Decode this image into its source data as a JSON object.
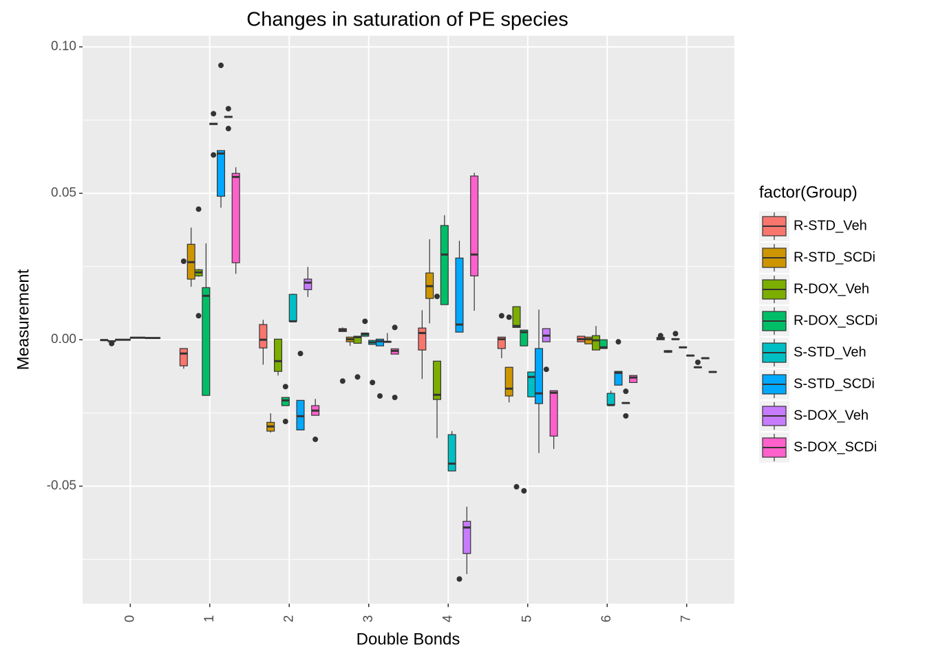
{
  "chart_data": {
    "type": "boxplot",
    "title": "Changes in saturation of PE species",
    "x_label": "Double Bonds",
    "y_label": "Measurement",
    "categories": [
      "0",
      "1",
      "2",
      "3",
      "4",
      "5",
      "6",
      "7"
    ],
    "ylim": [
      -0.0901,
      0.1038
    ],
    "yticks": [
      -0.05,
      {
        "value": 0,
        "label": "0.00"
      },
      0.05,
      {
        "value": 0.1,
        "label": "0.10"
      }
    ],
    "minor_yticks": [
      -0.075,
      -0.025,
      0.025,
      0.075
    ],
    "grid": true,
    "legend_title": "factor(Group)",
    "legend_position": "right",
    "series": [
      {
        "name": "R-STD_Veh",
        "color": "#F8766D",
        "boxes": [
          {
            "low": -0.0005,
            "q1": -0.0003,
            "median": -0.0001,
            "q3": 0,
            "high": 0.0002
          },
          {
            "low": -0.0099,
            "q1": -0.0089,
            "median": -0.0047,
            "q3": -0.003,
            "high": -0.003,
            "outliers": [
              0.0268
            ]
          },
          {
            "low": -0.0085,
            "q1": -0.0028,
            "median": 0,
            "q3": 0.0052,
            "high": 0.0068
          },
          {
            "low": 0.0028,
            "q1": 0.0028,
            "median": 0.0033,
            "q3": 0.0038,
            "high": 0.0042,
            "outliers": [
              -0.0141
            ]
          },
          {
            "low": -0.0134,
            "q1": -0.0035,
            "median": 0.0023,
            "q3": 0.004,
            "high": 0.0101
          },
          {
            "low": -0.0063,
            "q1": -0.003,
            "median": 0.0002,
            "q3": 0.0009,
            "high": 0.0009,
            "outliers": [
              0.0082
            ]
          },
          {
            "low": -0.0007,
            "q1": -0.0007,
            "median": 0.0002,
            "q3": 0.0012,
            "high": 0.0012
          },
          {
            "low": 0,
            "q1": 0,
            "median": 0.0004,
            "q3": 0.0008,
            "high": 0.0008,
            "outliers": [
              0.0014
            ]
          }
        ]
      },
      {
        "name": "R-STD_SCDi",
        "color": "#CD9600",
        "boxes": [
          {
            "low": -0.0008,
            "q1": -0.0006,
            "median": -0.0005,
            "q3": -0.0004,
            "high": -0.0003,
            "outliers": [
              -0.0013
            ]
          },
          {
            "low": 0.0181,
            "q1": 0.0207,
            "median": 0.0265,
            "q3": 0.0326,
            "high": 0.0383
          },
          {
            "low": -0.0317,
            "q1": -0.0312,
            "median": -0.0296,
            "q3": -0.0282,
            "high": -0.0251
          },
          {
            "low": -0.0021,
            "q1": -0.0007,
            "median": 0.0002,
            "q3": 0.0009,
            "high": 0.0009
          },
          {
            "low": 0.0056,
            "q1": 0.0141,
            "median": 0.0183,
            "q3": 0.0228,
            "high": 0.0343
          },
          {
            "low": -0.0214,
            "q1": -0.0192,
            "median": -0.0167,
            "q3": -0.0094,
            "high": -0.0094,
            "outliers": [
              0.0077
            ]
          },
          {
            "low": -0.0014,
            "q1": -0.0014,
            "median": 0.0002,
            "q3": 0.0009,
            "high": 0.0009
          },
          {
            "low": -0.0045,
            "q1": -0.0043,
            "median": -0.004,
            "q3": -0.0037,
            "high": -0.0035
          }
        ]
      },
      {
        "name": "R-DOX_Veh",
        "color": "#7CAE00",
        "boxes": [
          {
            "low": -0.0002,
            "q1": -0.0001,
            "median": 0,
            "q3": 0.0001,
            "high": 0.0002
          },
          {
            "low": 0.0215,
            "q1": 0.0218,
            "median": 0.023,
            "q3": 0.0239,
            "high": 0.0242,
            "outliers": [
              0.0446,
              0.0082
            ]
          },
          {
            "low": -0.0122,
            "q1": -0.0108,
            "median": -0.0073,
            "q3": 0.0002,
            "high": 0.0002
          },
          {
            "low": -0.0012,
            "q1": -0.0012,
            "median": 0.0009,
            "q3": 0.0012,
            "high": 0.0012,
            "outliers": [
              -0.0127
            ]
          },
          {
            "low": -0.0336,
            "q1": -0.0204,
            "median": -0.0188,
            "q3": -0.0073,
            "high": -0.0073,
            "outliers": [
              0.0148
            ]
          },
          {
            "low": 0.0042,
            "q1": 0.0042,
            "median": 0.0047,
            "q3": 0.0113,
            "high": 0.0113,
            "outliers": [
              -0.0502
            ]
          },
          {
            "low": -0.0035,
            "q1": -0.0035,
            "median": -0.0002,
            "q3": 0.0014,
            "high": 0.0047
          },
          {
            "low": 0.0001,
            "q1": 0.0001,
            "median": 0.0002,
            "q3": 0.0003,
            "high": 0.0003,
            "outliers": [
              0.0021
            ]
          }
        ]
      },
      {
        "name": "R-DOX_SCDi",
        "color": "#00BE67",
        "boxes": [
          {
            "low": -0.0002,
            "q1": -0.0001,
            "median": 0,
            "q3": 0.0001,
            "high": 0.0002
          },
          {
            "low": -0.019,
            "q1": -0.019,
            "median": 0.015,
            "q3": 0.0178,
            "high": 0.0329
          },
          {
            "low": -0.0225,
            "q1": -0.0225,
            "median": -0.0207,
            "q3": -0.0197,
            "high": -0.0197,
            "outliers": [
              -0.016,
              -0.0279
            ]
          },
          {
            "low": 0.0012,
            "q1": 0.0012,
            "median": 0.0019,
            "q3": 0.0023,
            "high": 0.0023,
            "outliers": [
              0.0063
            ]
          },
          {
            "low": 0.012,
            "q1": 0.012,
            "median": 0.0291,
            "q3": 0.039,
            "high": 0.0425
          },
          {
            "low": -0.0021,
            "q1": -0.0021,
            "median": 0.0026,
            "q3": 0.0033,
            "high": 0.0033,
            "outliers": [
              -0.0516
            ]
          },
          {
            "low": -0.003,
            "q1": -0.003,
            "median": -0.0026,
            "q3": 0,
            "high": 0
          },
          {
            "low": -0.0028,
            "q1": -0.0027,
            "median": -0.0026,
            "q3": -0.0025,
            "high": -0.0024
          }
        ]
      },
      {
        "name": "S-STD_Veh",
        "color": "#00BFC4",
        "boxes": [
          {
            "low": 0.0005,
            "q1": 0.0006,
            "median": 0.0007,
            "q3": 0.0008,
            "high": 0.0009
          },
          {
            "low": 0.0735,
            "q1": 0.0735,
            "median": 0.0737,
            "q3": 0.0739,
            "high": 0.0739,
            "outliers": [
              0.0772,
              0.0631
            ]
          },
          {
            "low": 0.0063,
            "q1": 0.0063,
            "median": 0.0063,
            "q3": 0.0155,
            "high": 0.0157
          },
          {
            "low": -0.0016,
            "q1": -0.0016,
            "median": -0.0009,
            "q3": -0.0002,
            "high": -0.0002,
            "outliers": [
              -0.0146
            ]
          },
          {
            "low": -0.0448,
            "q1": -0.0448,
            "median": -0.0423,
            "q3": -0.0324,
            "high": -0.0312
          },
          {
            "low": -0.0195,
            "q1": -0.0195,
            "median": -0.0127,
            "q3": -0.011,
            "high": -0.011
          },
          {
            "low": -0.0223,
            "q1": -0.0223,
            "median": -0.0223,
            "q3": -0.0183,
            "high": -0.0174
          },
          {
            "low": -0.0056,
            "q1": -0.0055,
            "median": -0.0054,
            "q3": -0.0053,
            "high": -0.0052
          }
        ]
      },
      {
        "name": "S-STD_SCDi",
        "color": "#00A9FF",
        "boxes": [
          {
            "low": 0.0005,
            "q1": 0.0006,
            "median": 0.0007,
            "q3": 0.0008,
            "high": 0.0009
          },
          {
            "low": 0.0451,
            "q1": 0.049,
            "median": 0.0636,
            "q3": 0.0646,
            "high": 0.0646,
            "outliers": [
              0.0937
            ]
          },
          {
            "low": -0.0308,
            "q1": -0.0308,
            "median": -0.0261,
            "q3": -0.0207,
            "high": -0.0207,
            "outliers": [
              -0.0047
            ]
          },
          {
            "low": -0.0021,
            "q1": -0.0021,
            "median": -0.0005,
            "q3": 0.0002,
            "high": 0.0002,
            "outliers": [
              -0.0192
            ]
          },
          {
            "low": 0.0026,
            "q1": 0.0026,
            "median": 0.0052,
            "q3": 0.0279,
            "high": 0.0338,
            "outliers": [
              -0.0817
            ]
          },
          {
            "low": -0.0387,
            "q1": -0.0218,
            "median": -0.0183,
            "q3": -0.003,
            "high": 0.0103
          },
          {
            "low": -0.0155,
            "q1": -0.0155,
            "median": -0.0113,
            "q3": -0.0108,
            "high": -0.0108,
            "outliers": [
              -0.0007
            ]
          },
          {
            "low": -0.0096,
            "q1": -0.0095,
            "median": -0.0094,
            "q3": -0.0093,
            "high": -0.0092,
            "outliers": [
              -0.0077
            ]
          }
        ]
      },
      {
        "name": "S-DOX_Veh",
        "color": "#C77CFF",
        "boxes": [
          {
            "low": 0.0004,
            "q1": 0.0005,
            "median": 0.0006,
            "q3": 0.0007,
            "high": 0.0008
          },
          {
            "low": 0.0759,
            "q1": 0.0759,
            "median": 0.0761,
            "q3": 0.0763,
            "high": 0.0763,
            "outliers": [
              0.0789,
              0.0721
            ]
          },
          {
            "low": 0.0146,
            "q1": 0.0171,
            "median": 0.0195,
            "q3": 0.0207,
            "high": 0.0249
          },
          {
            "low": -0.0008,
            "q1": -0.0008,
            "median": -0.0007,
            "q3": -0.0006,
            "high": 0.0023
          },
          {
            "low": -0.08,
            "q1": -0.073,
            "median": -0.0641,
            "q3": -0.062,
            "high": -0.057
          },
          {
            "low": -0.0007,
            "q1": -0.0007,
            "median": 0.0014,
            "q3": 0.0038,
            "high": 0.0038,
            "outliers": [
              -0.0101
            ]
          },
          {
            "low": -0.0218,
            "q1": -0.0217,
            "median": -0.0216,
            "q3": -0.0215,
            "high": -0.0214,
            "outliers": [
              -0.0176,
              -0.026
            ]
          },
          {
            "low": -0.0065,
            "q1": -0.0064,
            "median": -0.0063,
            "q3": -0.0062,
            "high": -0.0061
          }
        ]
      },
      {
        "name": "S-DOX_SCDi",
        "color": "#FF61CC",
        "boxes": [
          {
            "low": 0.0004,
            "q1": 0.0005,
            "median": 0.0006,
            "q3": 0.0007,
            "high": 0.0008
          },
          {
            "low": 0.0225,
            "q1": 0.0263,
            "median": 0.0556,
            "q3": 0.0568,
            "high": 0.0589
          },
          {
            "low": -0.0258,
            "q1": -0.0258,
            "median": -0.0242,
            "q3": -0.0225,
            "high": -0.0202,
            "outliers": [
              -0.034
            ]
          },
          {
            "low": -0.0049,
            "q1": -0.0049,
            "median": -0.0038,
            "q3": -0.0031,
            "high": -0.0031,
            "outliers": [
              0.0042,
              -0.0197
            ]
          },
          {
            "low": 0.0099,
            "q1": 0.0218,
            "median": 0.0291,
            "q3": 0.0559,
            "high": 0.057
          },
          {
            "low": -0.0373,
            "q1": -0.0329,
            "median": -0.0181,
            "q3": -0.0174,
            "high": -0.0174
          },
          {
            "low": -0.0146,
            "q1": -0.0146,
            "median": -0.0129,
            "q3": -0.0122,
            "high": -0.0122
          },
          {
            "low": -0.0112,
            "q1": -0.0111,
            "median": -0.011,
            "q3": -0.0109,
            "high": -0.0108
          }
        ]
      }
    ]
  }
}
